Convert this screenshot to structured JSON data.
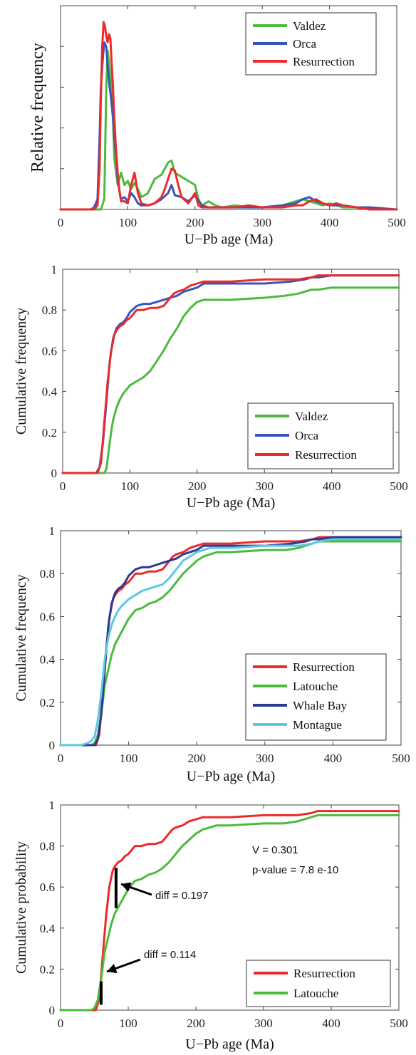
{
  "chart_data": [
    {
      "type": "line",
      "xlabel": "U−Pb age (Ma)",
      "ylabel": "Relative frequency",
      "xlim": [
        0,
        500
      ],
      "ylim": [
        0,
        1
      ],
      "xticks": [
        "0",
        "100",
        "200",
        "300",
        "400",
        "500"
      ],
      "yticks": [],
      "grid": false,
      "legend": "top-right",
      "series": [
        {
          "name": "Valdez",
          "color": "#4cbb3c",
          "x": [
            0,
            55,
            60,
            65,
            68,
            70,
            72,
            75,
            78,
            80,
            85,
            90,
            95,
            100,
            105,
            110,
            115,
            120,
            130,
            140,
            150,
            155,
            160,
            165,
            170,
            180,
            190,
            200,
            205,
            210,
            220,
            230,
            240,
            260,
            280,
            300,
            330,
            350,
            360,
            370,
            380,
            390,
            400,
            420,
            440,
            460,
            500
          ],
          "y": [
            0,
            0,
            0,
            0.05,
            0.6,
            0.78,
            0.72,
            0.62,
            0.45,
            0.25,
            0.12,
            0.18,
            0.12,
            0.14,
            0.1,
            0.13,
            0.1,
            0.06,
            0.08,
            0.15,
            0.17,
            0.2,
            0.23,
            0.24,
            0.18,
            0.16,
            0.14,
            0.12,
            0.05,
            0.02,
            0.04,
            0.02,
            0.01,
            0.02,
            0.01,
            0.01,
            0.02,
            0.04,
            0.05,
            0.04,
            0.03,
            0.02,
            0.03,
            0.01,
            0.01,
            0,
            0
          ]
        },
        {
          "name": "Orca",
          "color": "#3656b8",
          "x": [
            0,
            45,
            50,
            55,
            58,
            60,
            63,
            65,
            68,
            70,
            73,
            75,
            78,
            80,
            83,
            85,
            88,
            90,
            95,
            100,
            105,
            110,
            115,
            120,
            130,
            140,
            150,
            160,
            165,
            170,
            180,
            190,
            200,
            210,
            220,
            240,
            260,
            280,
            300,
            330,
            350,
            360,
            370,
            380,
            390,
            400,
            420,
            440,
            460,
            500
          ],
          "y": [
            0,
            0,
            0.01,
            0.05,
            0.35,
            0.6,
            0.75,
            0.82,
            0.8,
            0.7,
            0.6,
            0.55,
            0.45,
            0.35,
            0.25,
            0.15,
            0.08,
            0.05,
            0.06,
            0.04,
            0.08,
            0.06,
            0.03,
            0.02,
            0.02,
            0.03,
            0.05,
            0.08,
            0.12,
            0.07,
            0.06,
            0.04,
            0.07,
            0.02,
            0.01,
            0.01,
            0.01,
            0.01,
            0.01,
            0.02,
            0.03,
            0.05,
            0.06,
            0.04,
            0.03,
            0.02,
            0.02,
            0.01,
            0.01,
            0
          ]
        },
        {
          "name": "Resurrection",
          "color": "#ec2a2a",
          "x": [
            0,
            50,
            55,
            58,
            60,
            62,
            64,
            66,
            68,
            70,
            72,
            74,
            76,
            78,
            80,
            82,
            85,
            88,
            90,
            95,
            100,
            105,
            110,
            115,
            120,
            130,
            140,
            150,
            155,
            160,
            165,
            170,
            175,
            180,
            190,
            200,
            205,
            210,
            220,
            240,
            260,
            280,
            300,
            330,
            350,
            360,
            370,
            380,
            390,
            400,
            410,
            420,
            440,
            460,
            500
          ],
          "y": [
            0,
            0,
            0.02,
            0.2,
            0.55,
            0.8,
            0.92,
            0.9,
            0.85,
            0.82,
            0.86,
            0.84,
            0.72,
            0.6,
            0.45,
            0.32,
            0.18,
            0.08,
            0.04,
            0.04,
            0.03,
            0.12,
            0.18,
            0.08,
            0.03,
            0.02,
            0.03,
            0.06,
            0.1,
            0.15,
            0.2,
            0.19,
            0.12,
            0.06,
            0.03,
            0.08,
            0.02,
            0.01,
            0.01,
            0.01,
            0.01,
            0.02,
            0.01,
            0.01,
            0.02,
            0.02,
            0.04,
            0.05,
            0.03,
            0.02,
            0.03,
            0.02,
            0.01,
            0,
            0
          ]
        }
      ]
    },
    {
      "type": "line",
      "xlabel": "U−Pb age (Ma)",
      "ylabel": "Cumulative frequency",
      "xlim": [
        0,
        500
      ],
      "ylim": [
        0,
        1
      ],
      "xticks": [
        "0",
        "100",
        "200",
        "300",
        "400",
        "500"
      ],
      "yticks": [
        "0",
        "0.2",
        "0.4",
        "0.6",
        "0.8",
        "1"
      ],
      "grid": false,
      "legend": "bottom-right",
      "series": [
        {
          "name": "Valdez",
          "color": "#4cbb3c",
          "x": [
            0,
            62,
            65,
            68,
            72,
            75,
            80,
            85,
            90,
            100,
            110,
            120,
            130,
            140,
            150,
            160,
            170,
            180,
            190,
            200,
            210,
            220,
            250,
            300,
            330,
            350,
            370,
            380,
            400,
            450,
            500
          ],
          "y": [
            0,
            0,
            0.02,
            0.1,
            0.2,
            0.26,
            0.32,
            0.36,
            0.39,
            0.43,
            0.45,
            0.47,
            0.5,
            0.55,
            0.6,
            0.66,
            0.71,
            0.77,
            0.81,
            0.84,
            0.85,
            0.85,
            0.85,
            0.86,
            0.87,
            0.88,
            0.9,
            0.9,
            0.91,
            0.91,
            0.91
          ]
        },
        {
          "name": "Orca",
          "color": "#3656b8",
          "x": [
            0,
            50,
            55,
            60,
            65,
            70,
            75,
            80,
            85,
            90,
            95,
            100,
            110,
            120,
            130,
            140,
            150,
            160,
            170,
            180,
            190,
            200,
            210,
            220,
            250,
            300,
            340,
            360,
            370,
            380,
            400,
            450,
            500
          ],
          "y": [
            0,
            0,
            0.03,
            0.15,
            0.35,
            0.55,
            0.66,
            0.71,
            0.73,
            0.74,
            0.76,
            0.79,
            0.82,
            0.83,
            0.83,
            0.84,
            0.85,
            0.86,
            0.87,
            0.89,
            0.9,
            0.91,
            0.93,
            0.93,
            0.93,
            0.93,
            0.94,
            0.95,
            0.96,
            0.96,
            0.97,
            0.97,
            0.97
          ]
        },
        {
          "name": "Resurrection",
          "color": "#ec2a2a",
          "x": [
            0,
            52,
            57,
            62,
            67,
            72,
            77,
            80,
            85,
            90,
            95,
            100,
            105,
            110,
            120,
            130,
            140,
            150,
            155,
            160,
            165,
            170,
            180,
            190,
            200,
            210,
            220,
            250,
            300,
            350,
            370,
            380,
            400,
            450,
            500
          ],
          "y": [
            0,
            0,
            0.05,
            0.25,
            0.45,
            0.6,
            0.68,
            0.7,
            0.72,
            0.73,
            0.75,
            0.76,
            0.78,
            0.8,
            0.8,
            0.81,
            0.81,
            0.82,
            0.84,
            0.86,
            0.88,
            0.89,
            0.9,
            0.92,
            0.93,
            0.94,
            0.94,
            0.94,
            0.95,
            0.95,
            0.96,
            0.97,
            0.97,
            0.97,
            0.97
          ]
        }
      ]
    },
    {
      "type": "line",
      "xlabel": "U−Pb age (Ma)",
      "ylabel": "Cumulative frequency",
      "xlim": [
        0,
        500
      ],
      "ylim": [
        0,
        1
      ],
      "xticks": [
        "0",
        "100",
        "200",
        "300",
        "400",
        "500"
      ],
      "yticks": [
        "0",
        "0.2",
        "0.4",
        "0.6",
        "0.8",
        "1"
      ],
      "grid": false,
      "legend": "bottom-right",
      "series": [
        {
          "name": "Resurrection",
          "color": "#ec2a2a",
          "x": [
            0,
            52,
            57,
            62,
            67,
            72,
            77,
            80,
            85,
            90,
            95,
            100,
            105,
            110,
            120,
            130,
            140,
            150,
            155,
            160,
            165,
            170,
            180,
            190,
            200,
            210,
            220,
            250,
            300,
            350,
            370,
            380,
            400,
            450,
            500
          ],
          "y": [
            0,
            0,
            0.05,
            0.25,
            0.45,
            0.6,
            0.68,
            0.7,
            0.72,
            0.73,
            0.75,
            0.76,
            0.78,
            0.8,
            0.8,
            0.81,
            0.81,
            0.82,
            0.84,
            0.86,
            0.88,
            0.89,
            0.9,
            0.92,
            0.93,
            0.94,
            0.94,
            0.94,
            0.95,
            0.95,
            0.96,
            0.97,
            0.97,
            0.97,
            0.97
          ]
        },
        {
          "name": "Latouche",
          "color": "#4cbb3c",
          "x": [
            0,
            45,
            50,
            55,
            60,
            65,
            70,
            75,
            80,
            90,
            100,
            110,
            120,
            130,
            140,
            150,
            160,
            170,
            180,
            190,
            200,
            210,
            220,
            230,
            250,
            300,
            330,
            350,
            360,
            370,
            380,
            400,
            450,
            500
          ],
          "y": [
            0,
            0,
            0.01,
            0.05,
            0.15,
            0.28,
            0.35,
            0.42,
            0.47,
            0.53,
            0.59,
            0.63,
            0.64,
            0.66,
            0.67,
            0.69,
            0.72,
            0.76,
            0.8,
            0.83,
            0.86,
            0.88,
            0.89,
            0.9,
            0.9,
            0.91,
            0.91,
            0.92,
            0.93,
            0.94,
            0.95,
            0.95,
            0.95,
            0.95
          ]
        },
        {
          "name": "Whale Bay",
          "color": "#2b3a94",
          "x": [
            0,
            50,
            55,
            60,
            65,
            70,
            75,
            80,
            85,
            90,
            95,
            100,
            110,
            120,
            130,
            140,
            150,
            160,
            170,
            180,
            190,
            200,
            210,
            220,
            250,
            300,
            340,
            360,
            370,
            380,
            400,
            450,
            500
          ],
          "y": [
            0,
            0,
            0.03,
            0.15,
            0.35,
            0.55,
            0.66,
            0.71,
            0.73,
            0.74,
            0.76,
            0.79,
            0.82,
            0.83,
            0.83,
            0.84,
            0.85,
            0.86,
            0.87,
            0.89,
            0.9,
            0.91,
            0.93,
            0.93,
            0.93,
            0.93,
            0.94,
            0.95,
            0.96,
            0.96,
            0.97,
            0.97,
            0.97
          ]
        },
        {
          "name": "Montague",
          "color": "#5ec8df",
          "x": [
            0,
            30,
            40,
            45,
            50,
            55,
            60,
            65,
            70,
            75,
            80,
            85,
            90,
            100,
            110,
            120,
            130,
            140,
            150,
            160,
            170,
            180,
            190,
            200,
            210,
            220,
            250,
            300,
            350,
            370,
            380,
            400,
            450,
            500
          ],
          "y": [
            0,
            0,
            0.01,
            0.02,
            0.04,
            0.12,
            0.25,
            0.4,
            0.5,
            0.56,
            0.6,
            0.63,
            0.65,
            0.68,
            0.7,
            0.72,
            0.73,
            0.74,
            0.75,
            0.78,
            0.82,
            0.86,
            0.88,
            0.9,
            0.91,
            0.92,
            0.92,
            0.93,
            0.93,
            0.94,
            0.95,
            0.96,
            0.96,
            0.96
          ]
        }
      ]
    },
    {
      "type": "line",
      "xlabel": "U−Pb age (Ma)",
      "ylabel": "Cumulative probability",
      "xlim": [
        0,
        500
      ],
      "ylim": [
        0,
        1
      ],
      "xticks": [
        "0",
        "100",
        "200",
        "300",
        "400",
        "500"
      ],
      "yticks": [
        "0",
        "0.2",
        "0.4",
        "0.6",
        "0.8",
        "1"
      ],
      "grid": false,
      "legend": "bottom-right",
      "series": [
        {
          "name": "Resurrection",
          "color": "#ec2a2a",
          "x": [
            0,
            52,
            57,
            62,
            67,
            72,
            77,
            80,
            85,
            90,
            95,
            100,
            105,
            110,
            120,
            130,
            140,
            150,
            155,
            160,
            165,
            170,
            180,
            190,
            200,
            210,
            220,
            250,
            300,
            350,
            370,
            380,
            400,
            450,
            500
          ],
          "y": [
            0,
            0,
            0.05,
            0.25,
            0.45,
            0.6,
            0.68,
            0.7,
            0.72,
            0.73,
            0.75,
            0.76,
            0.78,
            0.8,
            0.8,
            0.81,
            0.81,
            0.82,
            0.84,
            0.86,
            0.88,
            0.89,
            0.9,
            0.92,
            0.93,
            0.94,
            0.94,
            0.94,
            0.95,
            0.95,
            0.96,
            0.97,
            0.97,
            0.97,
            0.97
          ]
        },
        {
          "name": "Latouche",
          "color": "#4cbb3c",
          "x": [
            0,
            45,
            50,
            55,
            60,
            65,
            70,
            75,
            80,
            90,
            100,
            110,
            120,
            130,
            140,
            150,
            160,
            170,
            180,
            190,
            200,
            210,
            220,
            230,
            250,
            300,
            330,
            350,
            360,
            370,
            380,
            400,
            450,
            500
          ],
          "y": [
            0,
            0,
            0.01,
            0.05,
            0.15,
            0.28,
            0.35,
            0.42,
            0.47,
            0.53,
            0.59,
            0.63,
            0.64,
            0.66,
            0.67,
            0.69,
            0.72,
            0.76,
            0.8,
            0.83,
            0.86,
            0.88,
            0.89,
            0.9,
            0.9,
            0.91,
            0.91,
            0.92,
            0.93,
            0.94,
            0.95,
            0.95,
            0.95,
            0.95
          ]
        }
      ],
      "annotations": {
        "stats_v": "V = 0.301",
        "stats_p": "p-value = 7.8 e-10",
        "diffs": [
          {
            "label": "diff = 0.197",
            "x": 82,
            "y1": 0.497,
            "y2": 0.694
          },
          {
            "label": "diff = 0.114",
            "x": 60,
            "y1": 0.026,
            "y2": 0.14
          }
        ]
      }
    }
  ]
}
